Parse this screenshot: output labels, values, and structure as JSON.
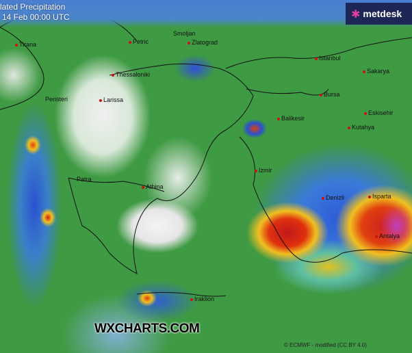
{
  "header": {
    "title": "lated Precipitation",
    "valid_time": "14 Feb 00:00 UTC"
  },
  "logo": {
    "text": "metdesk",
    "icon": "metdesk-snowflake-icon",
    "bg": "#1d2756"
  },
  "cities": [
    {
      "name": "Tirana"
    },
    {
      "name": "Petric"
    },
    {
      "name": "Smoljan"
    },
    {
      "name": "Zlatograd"
    },
    {
      "name": "Istanbul"
    },
    {
      "name": "Sakarya"
    },
    {
      "name": "Thessaloniki"
    },
    {
      "name": "Bursa"
    },
    {
      "name": "Peristeri"
    },
    {
      "name": "Larissa"
    },
    {
      "name": "Eskisehir"
    },
    {
      "name": "Balikesir"
    },
    {
      "name": "Kutahya"
    },
    {
      "name": "Izmir"
    },
    {
      "name": "Patra"
    },
    {
      "name": "Athina"
    },
    {
      "name": "Denizli"
    },
    {
      "name": "Isparta"
    },
    {
      "name": "Antalya"
    },
    {
      "name": "Iraklion"
    }
  ],
  "watermark": "WXCHARTS.COM",
  "attribution": "© ECMWF - modified (CC BY 4.0)",
  "colors": {
    "low": "#3f9a44",
    "dry": "#e8e8e8",
    "moderate": "#2c5ad8",
    "heavy": "#d02020",
    "extreme": "#c040c0"
  }
}
